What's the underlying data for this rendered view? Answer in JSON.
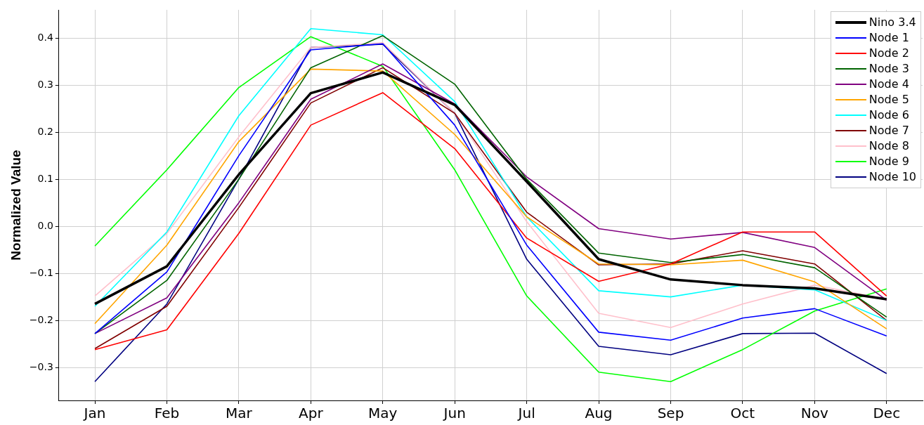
{
  "chart_data": {
    "type": "line",
    "ylabel": "Normalized Value",
    "categories": [
      "Jan",
      "Feb",
      "Mar",
      "Apr",
      "May",
      "Jun",
      "Jul",
      "Aug",
      "Sep",
      "Oct",
      "Nov",
      "Dec"
    ],
    "series": [
      {
        "name": "Nino 3.4",
        "color": "#000000",
        "values": [
          -0.165,
          -0.085,
          0.11,
          0.283,
          0.327,
          0.258,
          0.095,
          -0.07,
          -0.113,
          -0.125,
          -0.132,
          -0.155
        ]
      },
      {
        "name": "Node 1",
        "color": "#0000ff",
        "values": [
          -0.228,
          -0.097,
          0.15,
          0.375,
          0.388,
          0.215,
          -0.04,
          -0.225,
          -0.242,
          -0.195,
          -0.175,
          -0.233
        ]
      },
      {
        "name": "Node 2",
        "color": "#ff0000",
        "values": [
          -0.262,
          -0.22,
          -0.015,
          0.215,
          0.284,
          0.165,
          -0.025,
          -0.117,
          -0.08,
          -0.012,
          -0.012,
          -0.148
        ]
      },
      {
        "name": "Node 3",
        "color": "#006400",
        "values": [
          -0.228,
          -0.115,
          0.1,
          0.337,
          0.405,
          0.302,
          0.1,
          -0.057,
          -0.077,
          -0.06,
          -0.088,
          -0.193
        ]
      },
      {
        "name": "Node 4",
        "color": "#800080",
        "values": [
          -0.228,
          -0.152,
          0.05,
          0.27,
          0.345,
          0.26,
          0.105,
          -0.005,
          -0.027,
          -0.013,
          -0.045,
          -0.157
        ]
      },
      {
        "name": "Node 5",
        "color": "#ffa500",
        "values": [
          -0.207,
          -0.04,
          0.18,
          0.334,
          0.33,
          0.195,
          0.02,
          -0.08,
          -0.082,
          -0.072,
          -0.118,
          -0.218
        ]
      },
      {
        "name": "Node 6",
        "color": "#00ffff",
        "values": [
          -0.17,
          -0.012,
          0.235,
          0.42,
          0.407,
          0.265,
          0.02,
          -0.137,
          -0.15,
          -0.125,
          -0.135,
          -0.2
        ]
      },
      {
        "name": "Node 7",
        "color": "#800000",
        "values": [
          -0.26,
          -0.17,
          0.04,
          0.262,
          0.337,
          0.24,
          0.03,
          -0.082,
          -0.08,
          -0.052,
          -0.08,
          -0.2
        ]
      },
      {
        "name": "Node 8",
        "color": "#ffc0cb",
        "values": [
          -0.148,
          -0.015,
          0.19,
          0.38,
          0.39,
          0.24,
          0.01,
          -0.185,
          -0.215,
          -0.165,
          -0.125,
          -0.155
        ]
      },
      {
        "name": "Node 9",
        "color": "#00ff00",
        "values": [
          -0.042,
          0.12,
          0.295,
          0.403,
          0.34,
          0.12,
          -0.148,
          -0.31,
          -0.33,
          -0.262,
          -0.18,
          -0.133
        ]
      },
      {
        "name": "Node 10",
        "color": "#000080",
        "values": [
          -0.33,
          -0.165,
          0.1,
          0.38,
          0.387,
          0.24,
          -0.07,
          -0.255,
          -0.273,
          -0.228,
          -0.227,
          -0.313
        ]
      }
    ],
    "ylim": [
      -0.37,
      0.46
    ],
    "yticks": [
      {
        "value": -0.3,
        "label": "−0.3"
      },
      {
        "value": -0.2,
        "label": "−0.2"
      },
      {
        "value": -0.1,
        "label": "−0.1"
      },
      {
        "value": 0,
        "label": "0.0"
      },
      0.1,
      0.2,
      0.3,
      0.4
    ],
    "grid": true,
    "legend": "top right",
    "marker": "none",
    "line_style": "solid"
  }
}
